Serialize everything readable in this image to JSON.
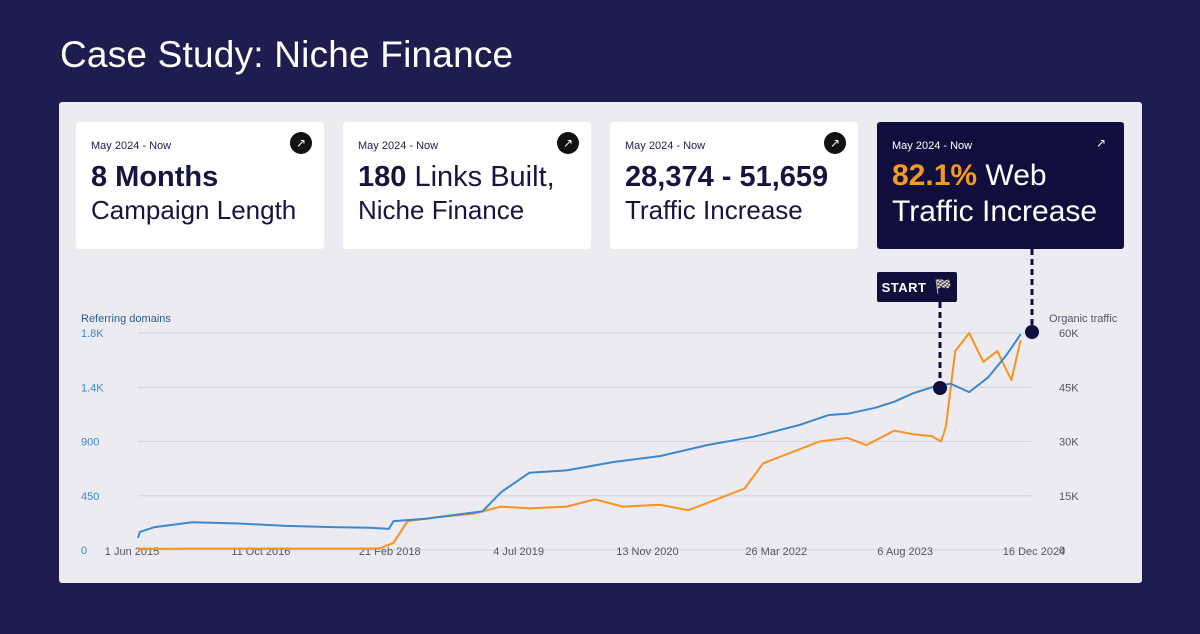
{
  "page": {
    "title": "Case Study: Niche Finance"
  },
  "cards": [
    {
      "date": "May 2024 - Now",
      "headline_bold": "8 Months",
      "headline_rest": "",
      "sub": "Campaign Length",
      "icon": "arrow-up-right-icon"
    },
    {
      "date": "May 2024 - Now",
      "headline_bold": "180",
      "headline_rest": "Links Built,",
      "sub": "Niche Finance",
      "icon": "arrow-up-right-icon"
    },
    {
      "date": "May 2024 - Now",
      "headline_bold": "28,374 - 51,659",
      "headline_rest": "",
      "sub": "Traffic Increase",
      "icon": "arrow-up-right-icon"
    },
    {
      "date": "May 2024 - Now",
      "headline_bold": "82.1%",
      "headline_rest": "Web",
      "sub": "Traffic Increase",
      "icon": "arrow-up-right-icon"
    }
  ],
  "start_marker": {
    "label": "START",
    "icon": "checkered-flag-icon"
  },
  "colors": {
    "background": "#1e1d4f",
    "panel": "#ebebf1",
    "referring_domains": "#3d87cc",
    "organic_traffic": "#f7931e",
    "accent": "#f39a1f",
    "dark_card": "#0f0e3d"
  },
  "chart_data": {
    "type": "line",
    "ylabel_left": "Referring domains",
    "ylabel_right": "Organic traffic",
    "x_ticks": [
      "1 Jun 2015",
      "11 Oct 2016",
      "21 Feb 2018",
      "4 Jul 2019",
      "13 Nov 2020",
      "26 Mar 2022",
      "6 Aug 2023",
      "16 Dec 2024"
    ],
    "y_left_ticks": [
      "0",
      "450",
      "900",
      "1.4K",
      "1.8K"
    ],
    "y_right_ticks": [
      "0",
      "15K",
      "30K",
      "45K",
      "60K"
    ],
    "xlim": [
      2015.42,
      2024.96
    ],
    "ylim_left": [
      0,
      1800
    ],
    "ylim_right": [
      0,
      60000
    ],
    "grid": true,
    "series": [
      {
        "name": "Referring domains",
        "axis": "left",
        "x": [
          2015.42,
          2015.44,
          2015.6,
          2016.0,
          2016.5,
          2017.0,
          2017.5,
          2017.9,
          2018.1,
          2018.15,
          2018.5,
          2018.9,
          2019.1,
          2019.3,
          2019.6,
          2020.0,
          2020.5,
          2021.0,
          2021.5,
          2022.0,
          2022.5,
          2022.8,
          2023.0,
          2023.3,
          2023.5,
          2023.7,
          2023.9,
          2024.1,
          2024.3,
          2024.5,
          2024.7,
          2024.85
        ],
        "y": [
          100,
          150,
          190,
          230,
          220,
          200,
          190,
          185,
          175,
          240,
          260,
          300,
          320,
          480,
          640,
          660,
          730,
          780,
          870,
          940,
          1040,
          1120,
          1130,
          1180,
          1230,
          1300,
          1350,
          1380,
          1310,
          1430,
          1620,
          1790
        ]
      },
      {
        "name": "Organic traffic",
        "axis": "right",
        "x": [
          2015.42,
          2016.0,
          2016.5,
          2017.0,
          2017.5,
          2018.0,
          2018.15,
          2018.3,
          2018.6,
          2019.0,
          2019.3,
          2019.6,
          2020.0,
          2020.3,
          2020.6,
          2021.0,
          2021.3,
          2021.6,
          2021.9,
          2022.1,
          2022.4,
          2022.7,
          2023.0,
          2023.2,
          2023.5,
          2023.7,
          2023.9,
          2024.0,
          2024.05,
          2024.15,
          2024.3,
          2024.45,
          2024.6,
          2024.75,
          2024.85
        ],
        "y": [
          300,
          400,
          400,
          400,
          400,
          400,
          2000,
          8000,
          9000,
          10000,
          12000,
          11500,
          12000,
          14000,
          12000,
          12500,
          11000,
          14000,
          17000,
          24000,
          27000,
          30000,
          31000,
          29000,
          33000,
          32000,
          31500,
          30000,
          34000,
          55000,
          60000,
          52000,
          55000,
          47000,
          58000
        ]
      }
    ]
  }
}
